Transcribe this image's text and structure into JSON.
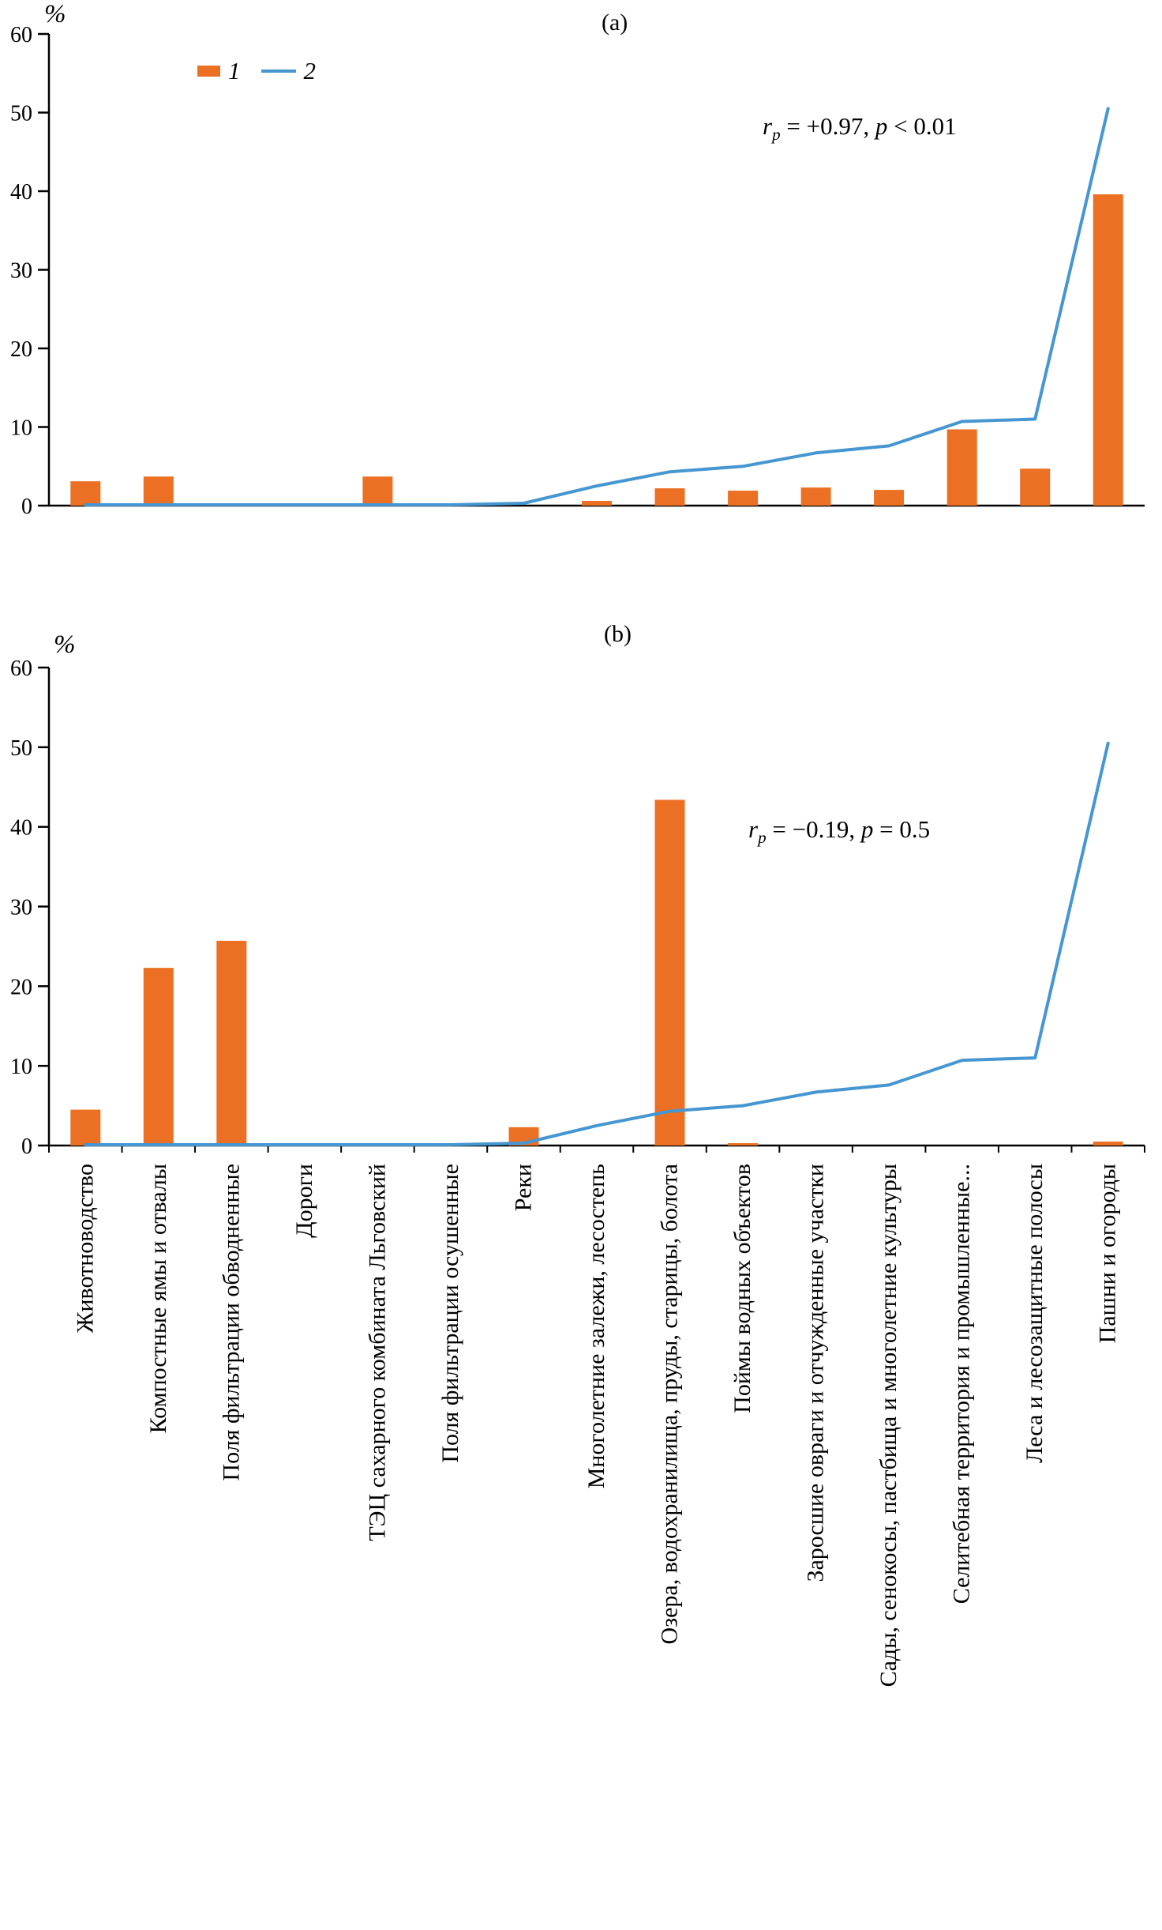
{
  "figure": {
    "background": "#ffffff",
    "axis_color": "#000000",
    "bar_color": "#EC7023",
    "line_color": "#4596D1"
  },
  "legend": {
    "items": [
      {
        "label": "1",
        "series_type": "bar",
        "color": "#EC7023"
      },
      {
        "label": "2",
        "series_type": "line",
        "color": "#4596D1"
      }
    ]
  },
  "chart_data": [
    {
      "type": "bar",
      "title": "(a)",
      "ylabel": "%",
      "ylim": [
        0,
        60
      ],
      "yticks": [
        0,
        10,
        20,
        30,
        40,
        50,
        60
      ],
      "grid": false,
      "legend_position": "top-left",
      "annotation": {
        "text": "rp = +0.97, p < 0.01",
        "var1": "r",
        "sub1": "p",
        "mid": " = +0.97, ",
        "var2": "p",
        "tail": " < 0.01"
      },
      "categories": [
        "Животноводство",
        "Компостные ямы и отвалы",
        "Поля фильтрации обводненные",
        "Дороги",
        "ТЭЦ сахарного комбината Льговский",
        "Поля фильтрации осушенные",
        "Реки",
        "Многолетние залежи, лесостепь",
        "Озера, водохранилища, пруды, старицы, болота",
        "Поймы водных объектов",
        "Заросшие овраги и отчужденные участки",
        "Сады, сенокосы, пастбища и многолетние культуры",
        "Селитебная территория и промышленные...",
        "Леса и лесозащитные полосы",
        "Пашни и огороды"
      ],
      "series": [
        {
          "name": "1",
          "type": "bar",
          "color": "#EC7023",
          "values": [
            3.1,
            3.7,
            0,
            0,
            3.7,
            0,
            0,
            0.6,
            2.2,
            1.9,
            2.3,
            2.0,
            9.7,
            4.7,
            39.6
          ]
        },
        {
          "name": "2",
          "type": "line",
          "color": "#4596D1",
          "values": [
            0.1,
            0.1,
            0.1,
            0.1,
            0.1,
            0.1,
            0.3,
            2.5,
            4.3,
            5.0,
            6.7,
            7.6,
            10.7,
            11.0,
            50.5
          ]
        }
      ]
    },
    {
      "type": "bar",
      "title": "(b)",
      "ylabel": "%",
      "ylim": [
        0,
        60
      ],
      "yticks": [
        0,
        10,
        20,
        30,
        40,
        50,
        60
      ],
      "grid": false,
      "annotation": {
        "text": "rp = −0.19, p = 0.5",
        "var1": "r",
        "sub1": "p",
        "mid": " = −0.19, ",
        "var2": "p",
        "tail": " = 0.5"
      },
      "categories": [
        "Животноводство",
        "Компостные ямы и отвалы",
        "Поля фильтрации обводненные",
        "Дороги",
        "ТЭЦ сахарного комбината Льговский",
        "Поля фильтрации осушенные",
        "Реки",
        "Многолетние залежи, лесостепь",
        "Озера, водохранилища, пруды, старицы, болота",
        "Поймы водных объектов",
        "Заросшие овраги и отчужденные участки",
        "Сады, сенокосы, пастбища и многолетние культуры",
        "Селитебная территория и промышленные...",
        "Леса и лесозащитные полосы",
        "Пашни и огороды"
      ],
      "series": [
        {
          "name": "1",
          "type": "bar",
          "color": "#EC7023",
          "values": [
            4.5,
            22.3,
            25.7,
            0,
            0,
            0,
            2.3,
            0,
            43.4,
            0.3,
            0,
            0,
            0,
            0,
            0.5
          ]
        },
        {
          "name": "2",
          "type": "line",
          "color": "#4596D1",
          "values": [
            0.1,
            0.1,
            0.1,
            0.1,
            0.1,
            0.1,
            0.3,
            2.5,
            4.3,
            5.0,
            6.7,
            7.6,
            10.7,
            11.0,
            50.5
          ]
        }
      ]
    }
  ]
}
